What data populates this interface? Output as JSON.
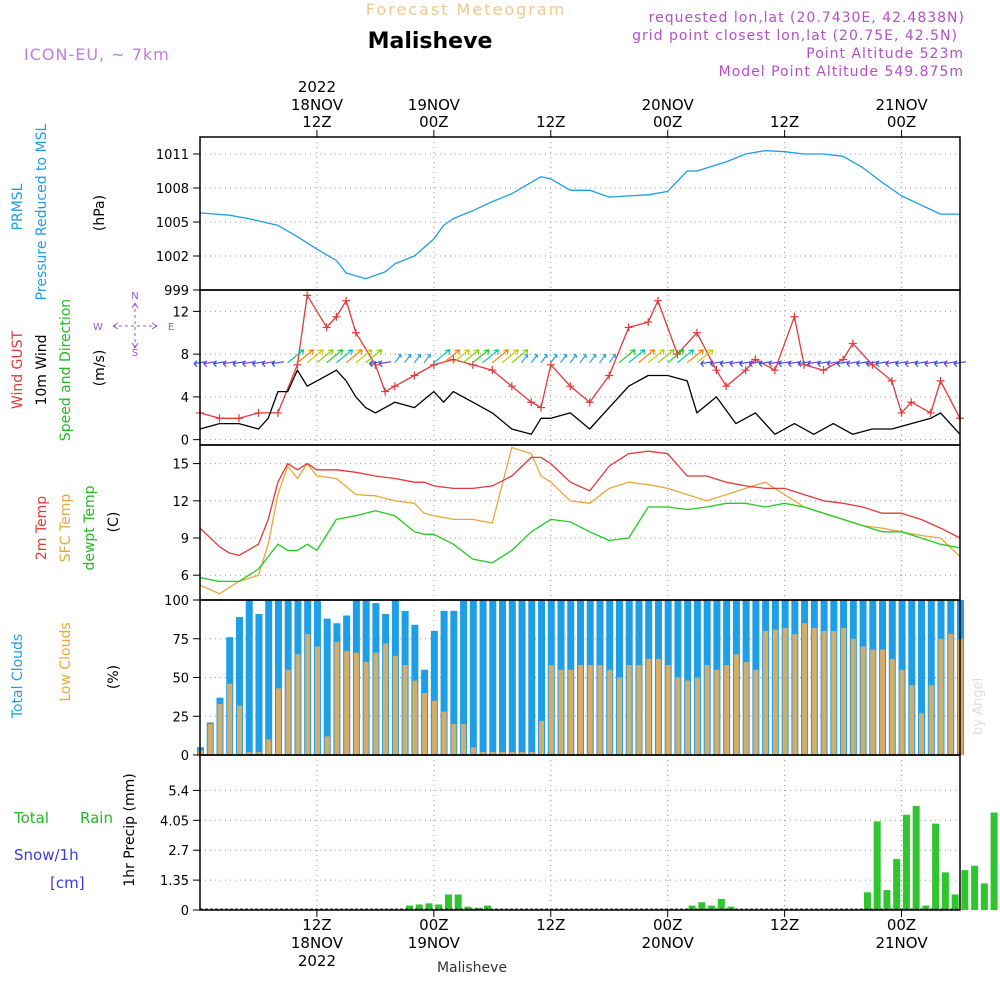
{
  "header": {
    "subtitle": "Forecast Meteogram",
    "title": "Malisheve",
    "model": "ICON-EU, ~ 7km",
    "requested": "requested lon,lat (20.7430E, 42.4838N)",
    "grid_point": "grid point closest lon,lat (20.75E, 42.5N)",
    "point_alt": "Point Altitude 523m",
    "model_alt": "Model Point Altitude 549.875m",
    "footer_name": "Malisheve",
    "watermark": "by Angel"
  },
  "time_axis": {
    "ticks": [
      {
        "x_label": "12Z",
        "date": "18NOV",
        "year": "2022"
      },
      {
        "x_label": "00Z",
        "date": "19NOV",
        "year": ""
      },
      {
        "x_label": "12Z",
        "date": "",
        "year": ""
      },
      {
        "x_label": "00Z",
        "date": "20NOV",
        "year": ""
      },
      {
        "x_label": "12Z",
        "date": "",
        "year": ""
      },
      {
        "x_label": "00Z",
        "date": "21NOV",
        "year": ""
      }
    ]
  },
  "panels": {
    "pressure": {
      "label1": "PRMSL",
      "label2": "Pressure Reduced to MSL",
      "unit": "(hPa)",
      "color": "#1e9ee6"
    },
    "wind": {
      "label1": "Wind GUST",
      "label2": "10m Wind",
      "label3": "Speed and Direction",
      "unit": "(m/s)",
      "compass_n": "N",
      "compass_s": "S",
      "compass_w": "W",
      "compass_e": "E"
    },
    "temp": {
      "label1": "2m Temp",
      "label2": "SFC Temp",
      "label3": "dewpt Temp",
      "unit": "(C)"
    },
    "clouds": {
      "label1": "Total Clouds",
      "label2": "Low Clouds",
      "unit": "(%)"
    },
    "precip": {
      "label1": "Total",
      "label2": "Rain",
      "label3": "Snow/1h",
      "label4": "[cm]",
      "label5": "1hr Precip (mm)"
    }
  },
  "chart_data": {
    "type": "line",
    "x_unit": "hours since 2022-11-18 00Z",
    "x_range": [
      0,
      78
    ],
    "pressure": {
      "ylim": [
        999,
        1012.5
      ],
      "yticks": [
        999,
        1002,
        1005,
        1008,
        1011
      ],
      "x": [
        0,
        3,
        5,
        8,
        10,
        12,
        14,
        15,
        17,
        19,
        20,
        22,
        24,
        25,
        26,
        28,
        30,
        32,
        34,
        35,
        36,
        38,
        40,
        42,
        44,
        46,
        48,
        50,
        51,
        54,
        56,
        58,
        60,
        62,
        64,
        66,
        68,
        70,
        72,
        74,
        76,
        78
      ],
      "values": [
        1005.8,
        1005.6,
        1005.3,
        1004.7,
        1003.7,
        1002.6,
        1001.6,
        1000.5,
        1000.0,
        1000.6,
        1001.3,
        1002.0,
        1003.5,
        1004.7,
        1005.3,
        1006.0,
        1006.8,
        1007.5,
        1008.5,
        1009.0,
        1008.8,
        1007.8,
        1007.8,
        1007.2,
        1007.3,
        1007.4,
        1007.7,
        1009.5,
        1009.5,
        1010.3,
        1011.0,
        1011.3,
        1011.2,
        1011.0,
        1011.0,
        1010.8,
        1009.8,
        1008.5,
        1007.3,
        1006.5,
        1005.7,
        1005.7
      ]
    },
    "wind": {
      "ylim": [
        -0.5,
        14
      ],
      "yticks": [
        0,
        4,
        8,
        12
      ],
      "gust_x": [
        0,
        2,
        4,
        6,
        8,
        10,
        11,
        13,
        14,
        15,
        16,
        18,
        19,
        20,
        22,
        24,
        26,
        28,
        30,
        32,
        34,
        35,
        36,
        38,
        40,
        42,
        44,
        46,
        47,
        49,
        51,
        53,
        54,
        56,
        57,
        59,
        61,
        62,
        64,
        66,
        67,
        69,
        71,
        72,
        73,
        75,
        76,
        78
      ],
      "gust": [
        2.5,
        2.0,
        2.0,
        2.5,
        2.5,
        7.0,
        13.5,
        10.5,
        11.5,
        13.0,
        10.0,
        7.0,
        4.5,
        5.0,
        6.0,
        7.0,
        7.5,
        7.0,
        6.5,
        5.0,
        3.5,
        3.0,
        7.0,
        5.0,
        3.5,
        6.0,
        10.5,
        11.0,
        13.0,
        8.0,
        10.0,
        6.5,
        5.0,
        6.5,
        7.5,
        6.5,
        11.5,
        7.0,
        6.5,
        7.5,
        9.0,
        7.0,
        5.5,
        2.5,
        3.5,
        2.5,
        5.5,
        2.0
      ],
      "speed_x": [
        0,
        2,
        4,
        6,
        7,
        8,
        9,
        10,
        11,
        12,
        14,
        15,
        16,
        17,
        18,
        20,
        22,
        24,
        25,
        26,
        28,
        30,
        32,
        34,
        35,
        36,
        38,
        40,
        42,
        44,
        46,
        48,
        50,
        51,
        53,
        55,
        57,
        59,
        61,
        63,
        65,
        67,
        69,
        71,
        73,
        75,
        76,
        78
      ],
      "speed": [
        1.0,
        1.5,
        1.5,
        1.0,
        2.0,
        4.5,
        4.5,
        6.5,
        5.0,
        5.5,
        6.5,
        5.5,
        4.0,
        3.0,
        2.5,
        3.5,
        3.0,
        4.5,
        3.5,
        4.5,
        3.5,
        2.5,
        1.0,
        0.5,
        2.0,
        2.0,
        2.5,
        1.0,
        3.0,
        5.0,
        6.0,
        6.0,
        5.5,
        2.5,
        4.0,
        1.5,
        2.5,
        0.5,
        1.5,
        0.5,
        1.5,
        0.5,
        1.0,
        1.0,
        1.5,
        2.0,
        2.5,
        0.5
      ]
    },
    "temperature": {
      "ylim": [
        4,
        16.5
      ],
      "yticks": [
        6,
        9,
        12,
        15
      ],
      "x": [
        0,
        2,
        3,
        4,
        6,
        7,
        8,
        9,
        10,
        11,
        12,
        14,
        16,
        18,
        20,
        22,
        23,
        24,
        26,
        28,
        30,
        32,
        34,
        35,
        36,
        38,
        40,
        42,
        44,
        46,
        48,
        50,
        52,
        54,
        56,
        58,
        60,
        62,
        64,
        66,
        68,
        70,
        72,
        74,
        76,
        78
      ],
      "t2m": [
        9.8,
        8.3,
        7.8,
        7.6,
        8.5,
        10.5,
        13.5,
        15.0,
        14.5,
        15.0,
        14.5,
        14.5,
        14.3,
        14.0,
        13.8,
        13.5,
        13.5,
        13.2,
        13.0,
        13.0,
        13.2,
        14.0,
        15.5,
        15.5,
        15.0,
        13.5,
        12.8,
        14.8,
        15.8,
        16.0,
        15.8,
        14.0,
        14.0,
        13.5,
        13.2,
        13.0,
        13.0,
        12.5,
        12.0,
        11.8,
        11.5,
        11.0,
        11.0,
        10.5,
        9.8,
        9.0
      ],
      "sfc": [
        5.2,
        4.5,
        5.0,
        5.5,
        6.0,
        8.5,
        12.5,
        14.8,
        13.8,
        15.0,
        14.0,
        13.8,
        12.5,
        12.4,
        12.0,
        11.8,
        11.0,
        10.8,
        10.5,
        10.5,
        10.2,
        16.3,
        15.8,
        14.0,
        13.5,
        12.0,
        11.8,
        13.0,
        13.5,
        13.3,
        13.0,
        12.5,
        12.0,
        12.5,
        13.0,
        13.5,
        12.5,
        11.5,
        11.0,
        10.5,
        10.0,
        9.8,
        9.5,
        9.2,
        9.0,
        7.5
      ],
      "dewpt": [
        5.8,
        5.5,
        5.5,
        5.5,
        6.5,
        7.5,
        8.5,
        8.0,
        8.0,
        8.5,
        8.0,
        10.5,
        10.8,
        11.2,
        10.8,
        9.5,
        9.3,
        9.3,
        8.5,
        7.3,
        7.0,
        8.0,
        9.5,
        10.0,
        10.5,
        10.3,
        9.5,
        8.8,
        9.0,
        11.5,
        11.5,
        11.3,
        11.5,
        11.8,
        11.8,
        11.5,
        11.8,
        11.5,
        11.0,
        10.5,
        10.0,
        9.5,
        9.5,
        9.0,
        8.5,
        8.2
      ]
    },
    "clouds": {
      "ylim": [
        0,
        100
      ],
      "yticks": [
        0,
        25,
        50,
        75,
        100
      ],
      "total": [
        5,
        21,
        37,
        76,
        89,
        100,
        91,
        100,
        100,
        100,
        100,
        100,
        100,
        88,
        85,
        90,
        100,
        100,
        98,
        91,
        100,
        93,
        84,
        55,
        80,
        93,
        93,
        100,
        100,
        100,
        100,
        100,
        100,
        100,
        100,
        100,
        100,
        100,
        100,
        100,
        100,
        100,
        100,
        100,
        100,
        100,
        100,
        100,
        100,
        100,
        100,
        100,
        100,
        100,
        100,
        100,
        100,
        100,
        100,
        100,
        100,
        100,
        100,
        100,
        100,
        100,
        100,
        100,
        100,
        100,
        100,
        100,
        100,
        100,
        100,
        100,
        100,
        100,
        100
      ],
      "low": [
        3,
        20,
        33,
        46,
        32,
        2,
        2,
        10,
        43,
        55,
        65,
        78,
        70,
        12,
        73,
        67,
        66,
        60,
        66,
        72,
        64,
        58,
        48,
        40,
        35,
        28,
        20,
        20,
        5,
        2,
        2,
        2,
        2,
        2,
        2,
        22,
        58,
        55,
        55,
        58,
        58,
        58,
        55,
        50,
        58,
        58,
        62,
        62,
        58,
        50,
        48,
        50,
        58,
        55,
        58,
        65,
        60,
        55,
        80,
        81,
        82,
        78,
        85,
        82,
        80,
        80,
        82,
        75,
        70,
        68,
        68,
        62,
        55,
        45,
        27,
        45,
        75,
        78,
        75
      ]
    },
    "precip": {
      "ylim": [
        0,
        7
      ],
      "yticks": [
        0,
        1.35,
        2.7,
        4.05,
        5.4
      ],
      "hourly": [
        0,
        0,
        0,
        0,
        0,
        0,
        0,
        0,
        0,
        0,
        0,
        0,
        0,
        0,
        0,
        0,
        0,
        0,
        0,
        0,
        0,
        0.2,
        0.25,
        0.3,
        0.25,
        0.7,
        0.7,
        0.15,
        0.1,
        0.2,
        0,
        0,
        0,
        0,
        0,
        0,
        0,
        0,
        0,
        0,
        0,
        0,
        0,
        0,
        0,
        0,
        0,
        0,
        0,
        0,
        0.2,
        0.35,
        0.2,
        0.5,
        0.15,
        0,
        0,
        0,
        0,
        0,
        0,
        0,
        0,
        0,
        0,
        0,
        0,
        0,
        0.8,
        4.0,
        0.9,
        2.3,
        4.3,
        4.7,
        0.2,
        3.9,
        1.7,
        0.7,
        1.8,
        2.0,
        1.2,
        4.4,
        6.4,
        3.8,
        4.1,
        1.2,
        0.4,
        2.4,
        0.4,
        0.2,
        1.1,
        0.9,
        1.7,
        0.2,
        1.6,
        1.0
      ]
    }
  }
}
